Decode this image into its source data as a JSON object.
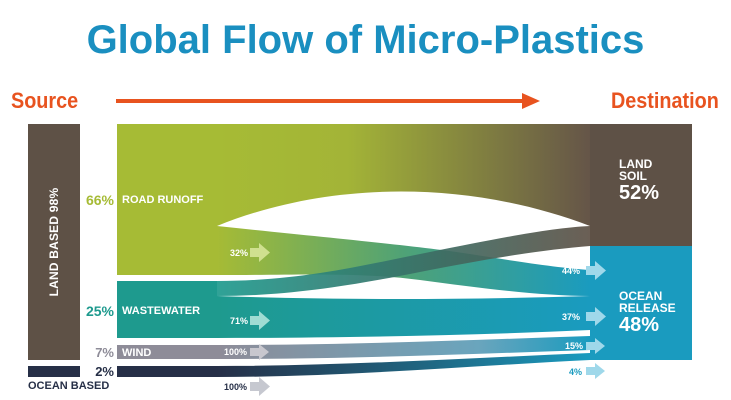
{
  "title": "Global Flow of Micro-Plastics",
  "source_label": "Source",
  "destination_label": "Destination",
  "land_based_label": "LAND BASED 98%",
  "ocean_based_label": "OCEAN BASED",
  "sources": [
    {
      "name": "ROAD RUNOFF",
      "percent": "66%",
      "color": "#a6bb35"
    },
    {
      "name": "WASTEWATER",
      "percent": "25%",
      "color": "#1e9a8e"
    },
    {
      "name": "WIND",
      "percent": "7%",
      "color": "#8e8c98"
    },
    {
      "name": "",
      "percent": "2%",
      "color": "#262f47"
    }
  ],
  "destinations": [
    {
      "name_line1": "LAND",
      "name_line2": "SOIL",
      "percent": "52%",
      "color": "#5e5146"
    },
    {
      "name_line1": "OCEAN",
      "name_line2": "RELEASE",
      "percent": "48%",
      "color": "#1a9bbf"
    }
  ],
  "flow_labels": {
    "road_to_ocean": "32%",
    "waste_to_ocean": "71%",
    "wind_to_ocean": "100%",
    "ocean_to_ocean": "100%",
    "dest_road": "44%",
    "dest_waste": "37%",
    "dest_wind": "15%",
    "dest_ocean": "4%"
  },
  "colors": {
    "title": "#1a8fc0",
    "accent": "#e8531f",
    "arrow": "#e8531f",
    "flow_arrow": "#9fd8ea"
  }
}
